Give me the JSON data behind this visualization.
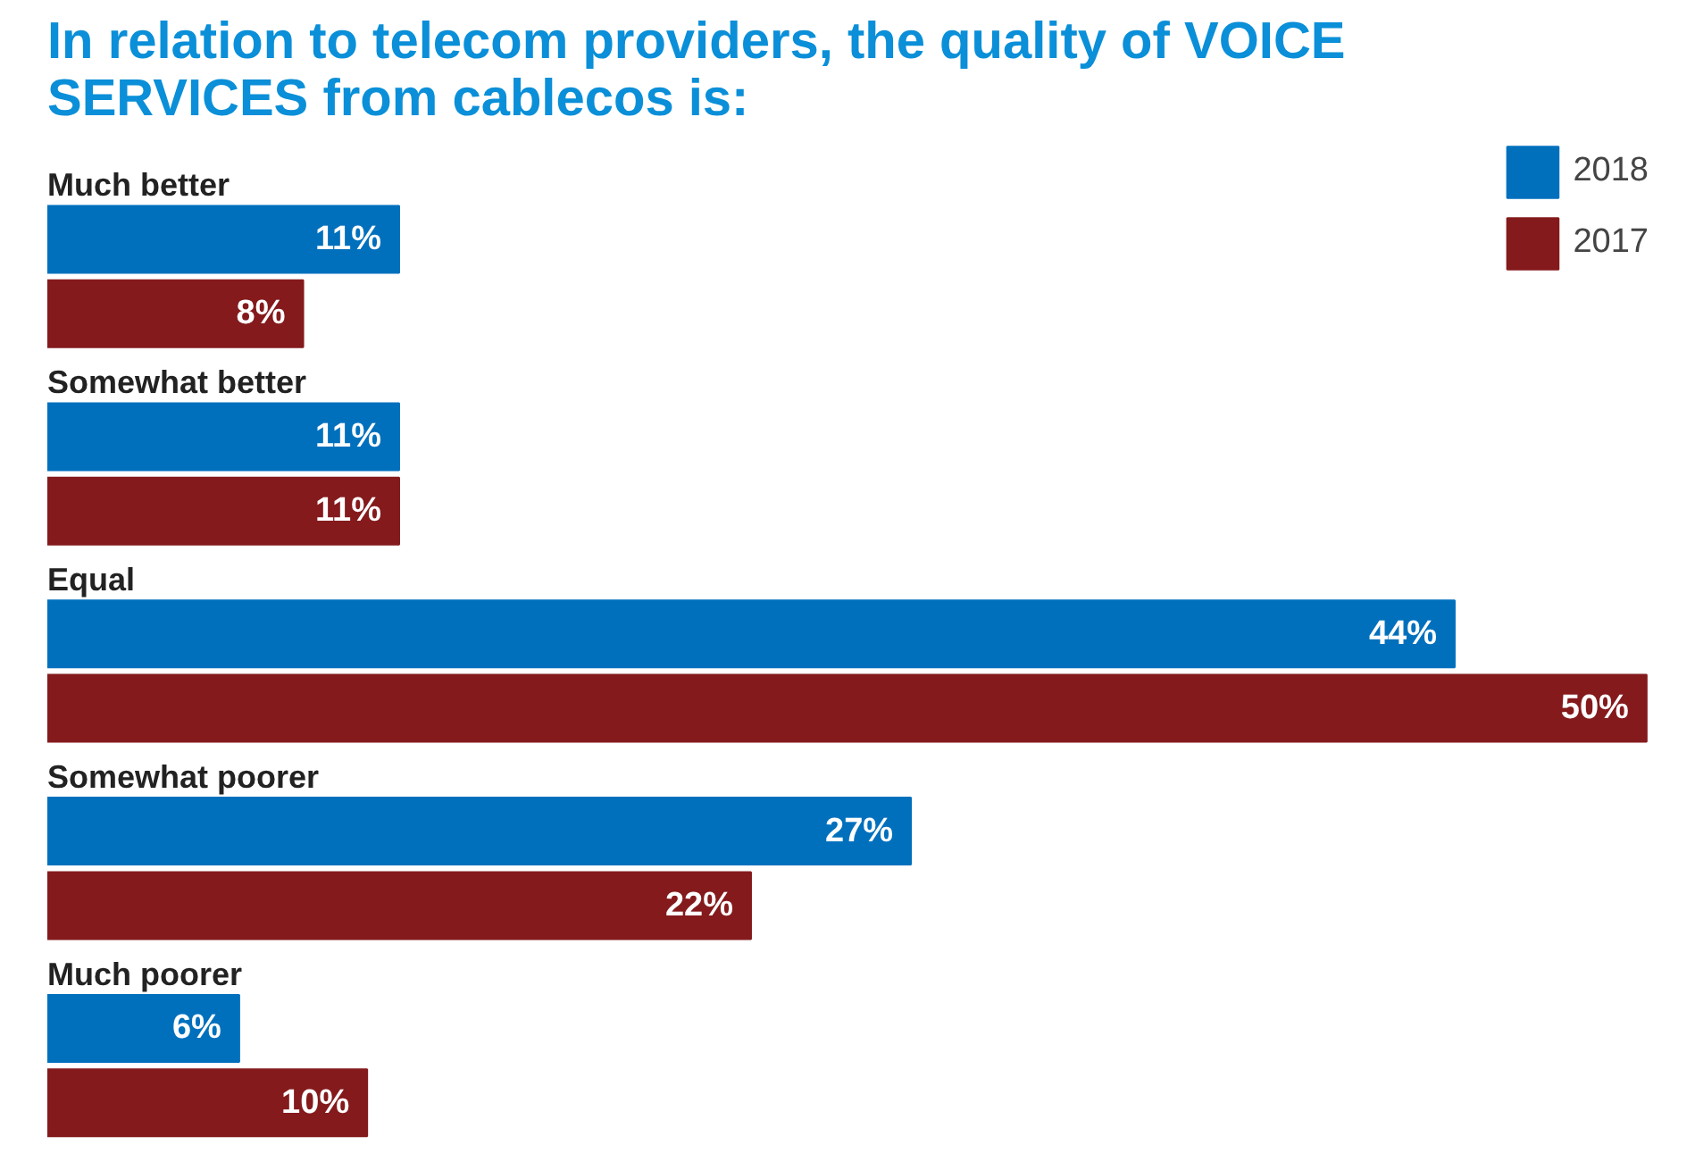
{
  "chart_data": {
    "type": "bar",
    "orientation": "horizontal",
    "title": "In relation to telecom providers, the quality of VOICE\nSERVICES from cablecos is:",
    "categories": [
      "Much better",
      "Somewhat better",
      "Equal",
      "Somewhat poorer",
      "Much poorer"
    ],
    "series": [
      {
        "name": "2018",
        "color": "#0070bd",
        "values": [
          11,
          11,
          44,
          27,
          6
        ],
        "value_labels": [
          "11%",
          "11%",
          "44%",
          "27%",
          "6%"
        ]
      },
      {
        "name": "2017",
        "color": "#841a1c",
        "values": [
          8,
          11,
          50,
          22,
          10
        ],
        "value_labels": [
          "8%",
          "11%",
          "50%",
          "22%",
          "10%"
        ]
      }
    ],
    "tick_labels": false,
    "legend": "top right"
  }
}
